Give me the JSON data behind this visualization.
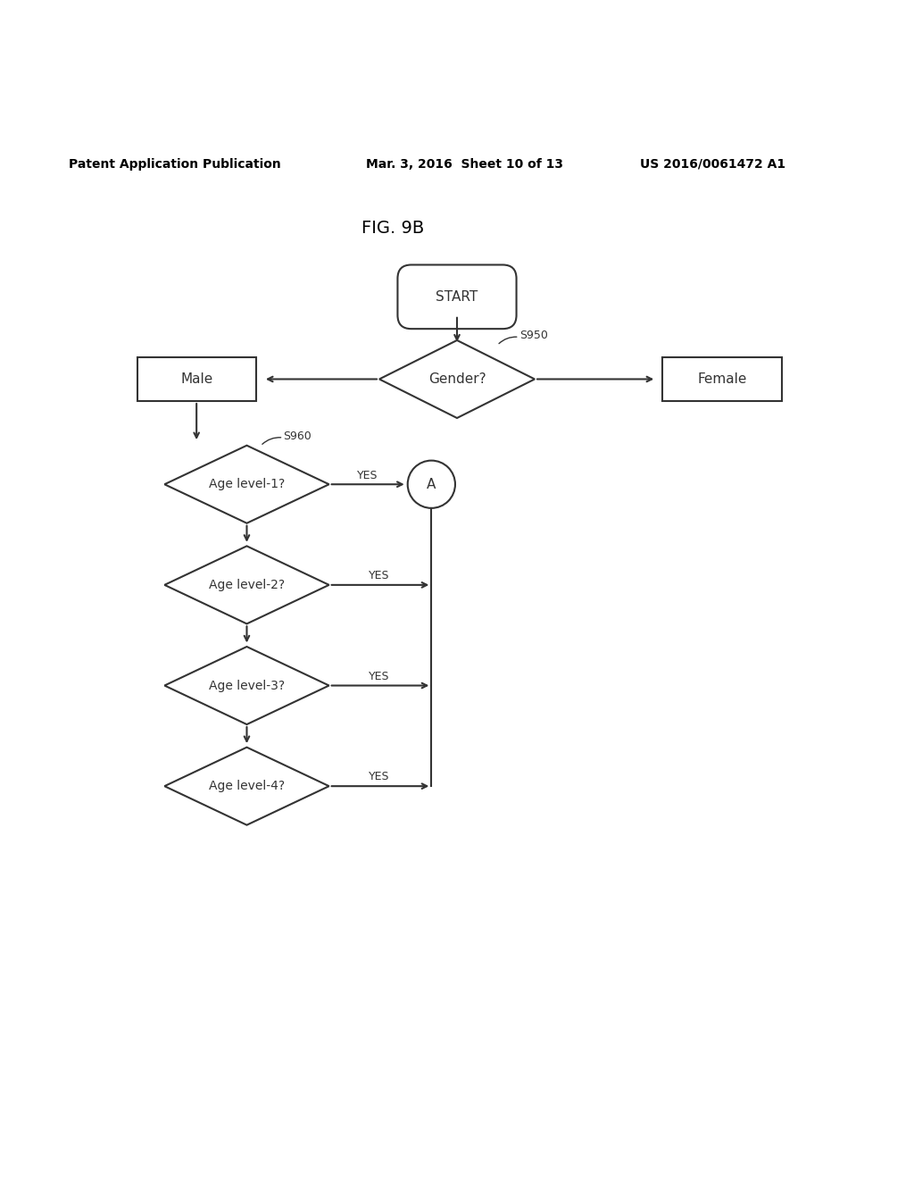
{
  "title": "FIG. 9B",
  "header_left": "Patent Application Publication",
  "header_mid": "Mar. 3, 2016  Sheet 10 of 13",
  "header_right": "US 2016/0061472 A1",
  "bg_color": "#ffffff",
  "line_color": "#333333",
  "text_color": "#333333"
}
